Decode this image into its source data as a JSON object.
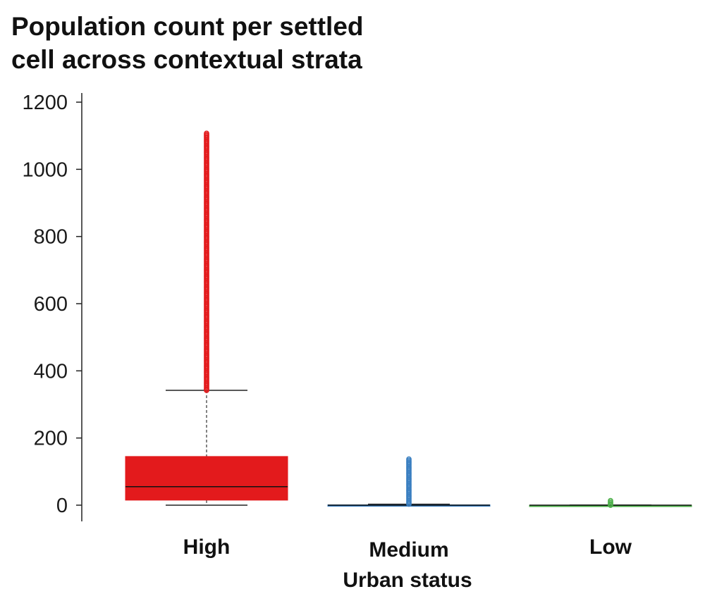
{
  "chart_data": {
    "type": "boxplot",
    "title": [
      "Population count per settled",
      "cell across contextual strata"
    ],
    "xlabel": "Urban status",
    "ylabel": "",
    "ylim": [
      0,
      1200
    ],
    "yticks": [
      0,
      200,
      400,
      600,
      800,
      1000,
      1200
    ],
    "categories": [
      "High",
      "Medium",
      "Low"
    ],
    "grid": false,
    "series": [
      {
        "category": "High",
        "color": "#e31a1c",
        "whisker_low": 0,
        "q1": 15,
        "median": 55,
        "q3": 145,
        "whisker_high": 342,
        "outliers_range": [
          342,
          1110
        ]
      },
      {
        "category": "Medium",
        "color": "#3a7fc1",
        "whisker_low": 0,
        "q1": 0,
        "median": 0,
        "q3": 1,
        "whisker_high": 3,
        "outliers_range": [
          3,
          140
        ]
      },
      {
        "category": "Low",
        "color": "#4daf4a",
        "whisker_low": 0,
        "q1": 0,
        "median": 0,
        "q3": 0,
        "whisker_high": 0,
        "outliers_range": [
          0,
          14
        ]
      }
    ]
  }
}
